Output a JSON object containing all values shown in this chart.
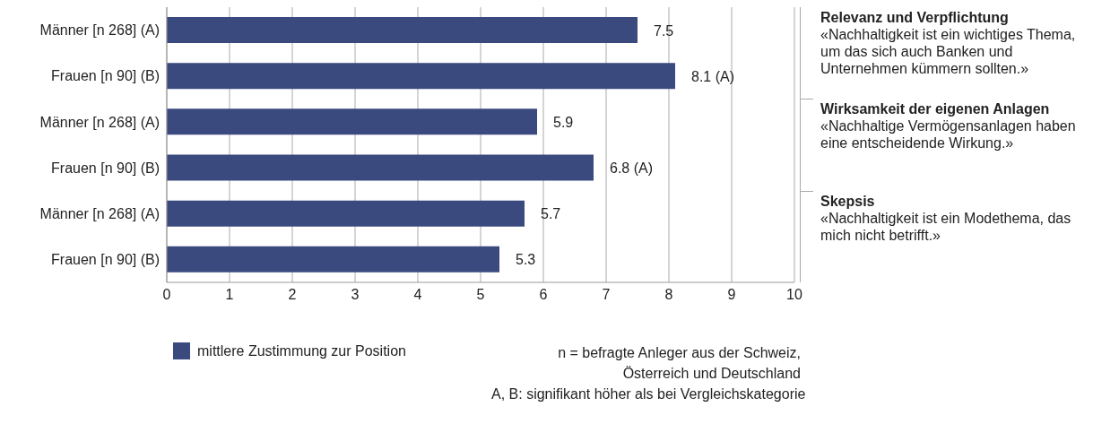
{
  "chart_data": {
    "type": "bar",
    "orientation": "horizontal",
    "categories": [
      "Männer [n 268] (A)",
      "Frauen [n 90] (B)",
      "Männer [n 268] (A)",
      "Frauen [n 90] (B)",
      "Männer [n 268] (A)",
      "Frauen [n 90] (B)"
    ],
    "series": [
      {
        "name": "mittlere Zustimmung zur Position",
        "color": "#3b4a7e",
        "values": [
          7.5,
          8.1,
          5.9,
          6.8,
          5.7,
          5.3
        ],
        "value_labels": [
          "7.5",
          "8.1 (A)",
          "5.9",
          "6.8 (A)",
          "5.7",
          "5.3"
        ]
      }
    ],
    "xlim": [
      0,
      10
    ],
    "xticks": [
      0,
      1,
      2,
      3,
      4,
      5,
      6,
      7,
      8,
      9,
      10
    ],
    "grid": "x",
    "legend": "bottom",
    "annotations": [
      "Relevanz und Verpflichtung",
      "«Nachhaltigkeit ist ein wichtiges Thema, um das sich auch Banken und Unternehmen kümmern sollten.»",
      "Wirksamkeit der eigenen Anlagen",
      "«Nachhaltige Vermögensanlagen haben eine entscheidende Wirkung.»",
      "Skepsis",
      "«Nachhaltigkeit ist ein Modethema, das mich nicht betrifft.»",
      "n = befragte Anleger aus der Schweiz, Österreich und Deutschland",
      "A, B: signifikant höher als bei Vergleichskategorie"
    ]
  }
}
